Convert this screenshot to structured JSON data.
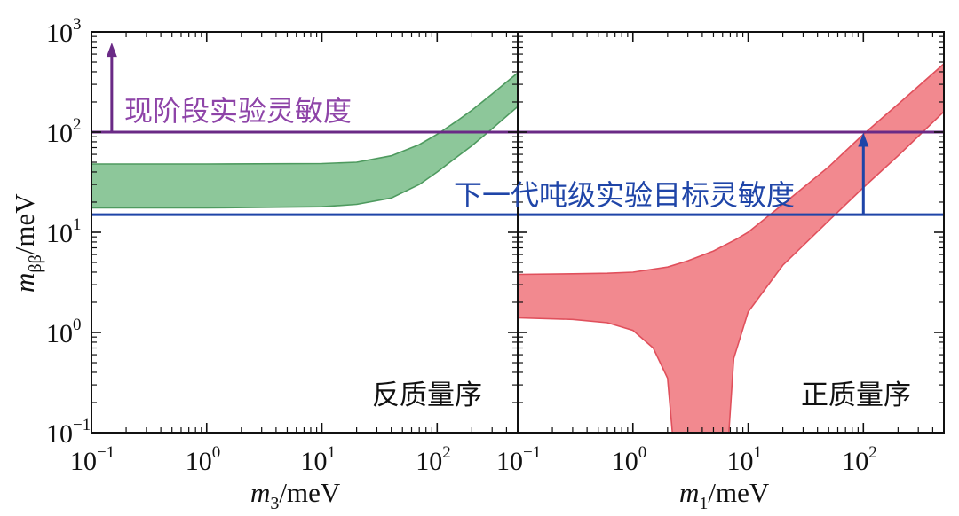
{
  "chart_data": {
    "type": "area",
    "shared_y_axis": {
      "label": "m_ββ/meV",
      "label_main": "m",
      "label_sub": "ββ",
      "label_unit": "/meV",
      "scale": "log",
      "ylim": [
        0.1,
        1000
      ],
      "ticks": [
        {
          "base": "10",
          "exp": "−1"
        },
        {
          "base": "10",
          "exp": "0"
        },
        {
          "base": "10",
          "exp": "1"
        },
        {
          "base": "10",
          "exp": "2"
        },
        {
          "base": "10",
          "exp": "3"
        }
      ]
    },
    "sensitivity_lines": [
      {
        "name": "现阶段实验灵敏度",
        "label": "现阶段实验灵敏度",
        "y": 100,
        "color": "#6a2a86",
        "label_color": "#8e44a8"
      },
      {
        "name": "下一代吨级实验目标灵敏度",
        "label": "下一代吨级实验目标灵敏度",
        "y": 15,
        "color": "#1f45a8",
        "label_color": "#1f45a8"
      }
    ],
    "panels": [
      {
        "title": "反质量序",
        "xlabel": "m_3/meV",
        "xlabel_main": "m",
        "xlabel_sub": "3",
        "xlabel_unit": "/meV",
        "xscale": "log",
        "xlim": [
          0.1,
          500
        ],
        "xticks": [
          {
            "base": "10",
            "exp": "−1"
          },
          {
            "base": "10",
            "exp": "0"
          },
          {
            "base": "10",
            "exp": "1"
          },
          {
            "base": "10",
            "exp": "2"
          }
        ],
        "band": {
          "name": "inverted ordering allowed region",
          "color": "#8dc79a",
          "edge_color": "#4e9a5f",
          "upper": {
            "x": [
              0.1,
              1,
              10,
              20,
              40,
              70,
              100,
              150,
              200,
              300,
              500
            ],
            "y": [
              48,
              48,
              48.5,
              50,
              58,
              75,
              95,
              130,
              165,
              240,
              390
            ]
          },
          "lower": {
            "x": [
              0.1,
              1,
              10,
              20,
              40,
              70,
              100,
              150,
              200,
              300,
              500
            ],
            "y": [
              17.5,
              17.5,
              18,
              19,
              22,
              30,
              40,
              57,
              73,
              108,
              180
            ]
          }
        },
        "arrow": {
          "x": 0.15,
          "from_y": 100,
          "to_y": 750,
          "color": "#6a2a86"
        }
      },
      {
        "title": "正质量序",
        "xlabel": "m_1/meV",
        "xlabel_main": "m",
        "xlabel_sub": "1",
        "xlabel_unit": "/meV",
        "xscale": "log",
        "xlim": [
          0.1,
          500
        ],
        "xticks": [
          {
            "base": "10",
            "exp": "−1"
          },
          {
            "base": "10",
            "exp": "0"
          },
          {
            "base": "10",
            "exp": "1"
          },
          {
            "base": "10",
            "exp": "2"
          }
        ],
        "band": {
          "name": "normal ordering allowed region",
          "color": "#f2898f",
          "edge_color": "#e0505c",
          "upper": {
            "x": [
              0.1,
              0.3,
              0.6,
              1,
              2,
              3,
              5,
              8,
              10,
              20,
              50,
              100,
              200,
              500
            ],
            "y": [
              3.8,
              3.85,
              3.9,
              4,
              4.5,
              5.2,
              6.5,
              8.6,
              10,
              19,
              45,
              95,
              190,
              480
            ]
          },
          "lower": {
            "x": [
              0.1,
              0.3,
              0.6,
              1,
              1.5,
              2,
              2.2,
              2.5,
              3,
              4,
              5,
              6,
              6.8,
              7.5,
              10,
              20,
              50,
              100,
              200,
              500
            ],
            "y": [
              1.4,
              1.35,
              1.25,
              1.05,
              0.7,
              0.35,
              0.1,
              0.1,
              0.1,
              0.1,
              0.1,
              0.1,
              0.1,
              0.55,
              1.6,
              4.7,
              13,
              28,
              58,
              160
            ]
          }
        },
        "arrow": {
          "x": 100,
          "from_y": 15,
          "to_y": 95,
          "color": "#1f45a8"
        }
      }
    ]
  }
}
